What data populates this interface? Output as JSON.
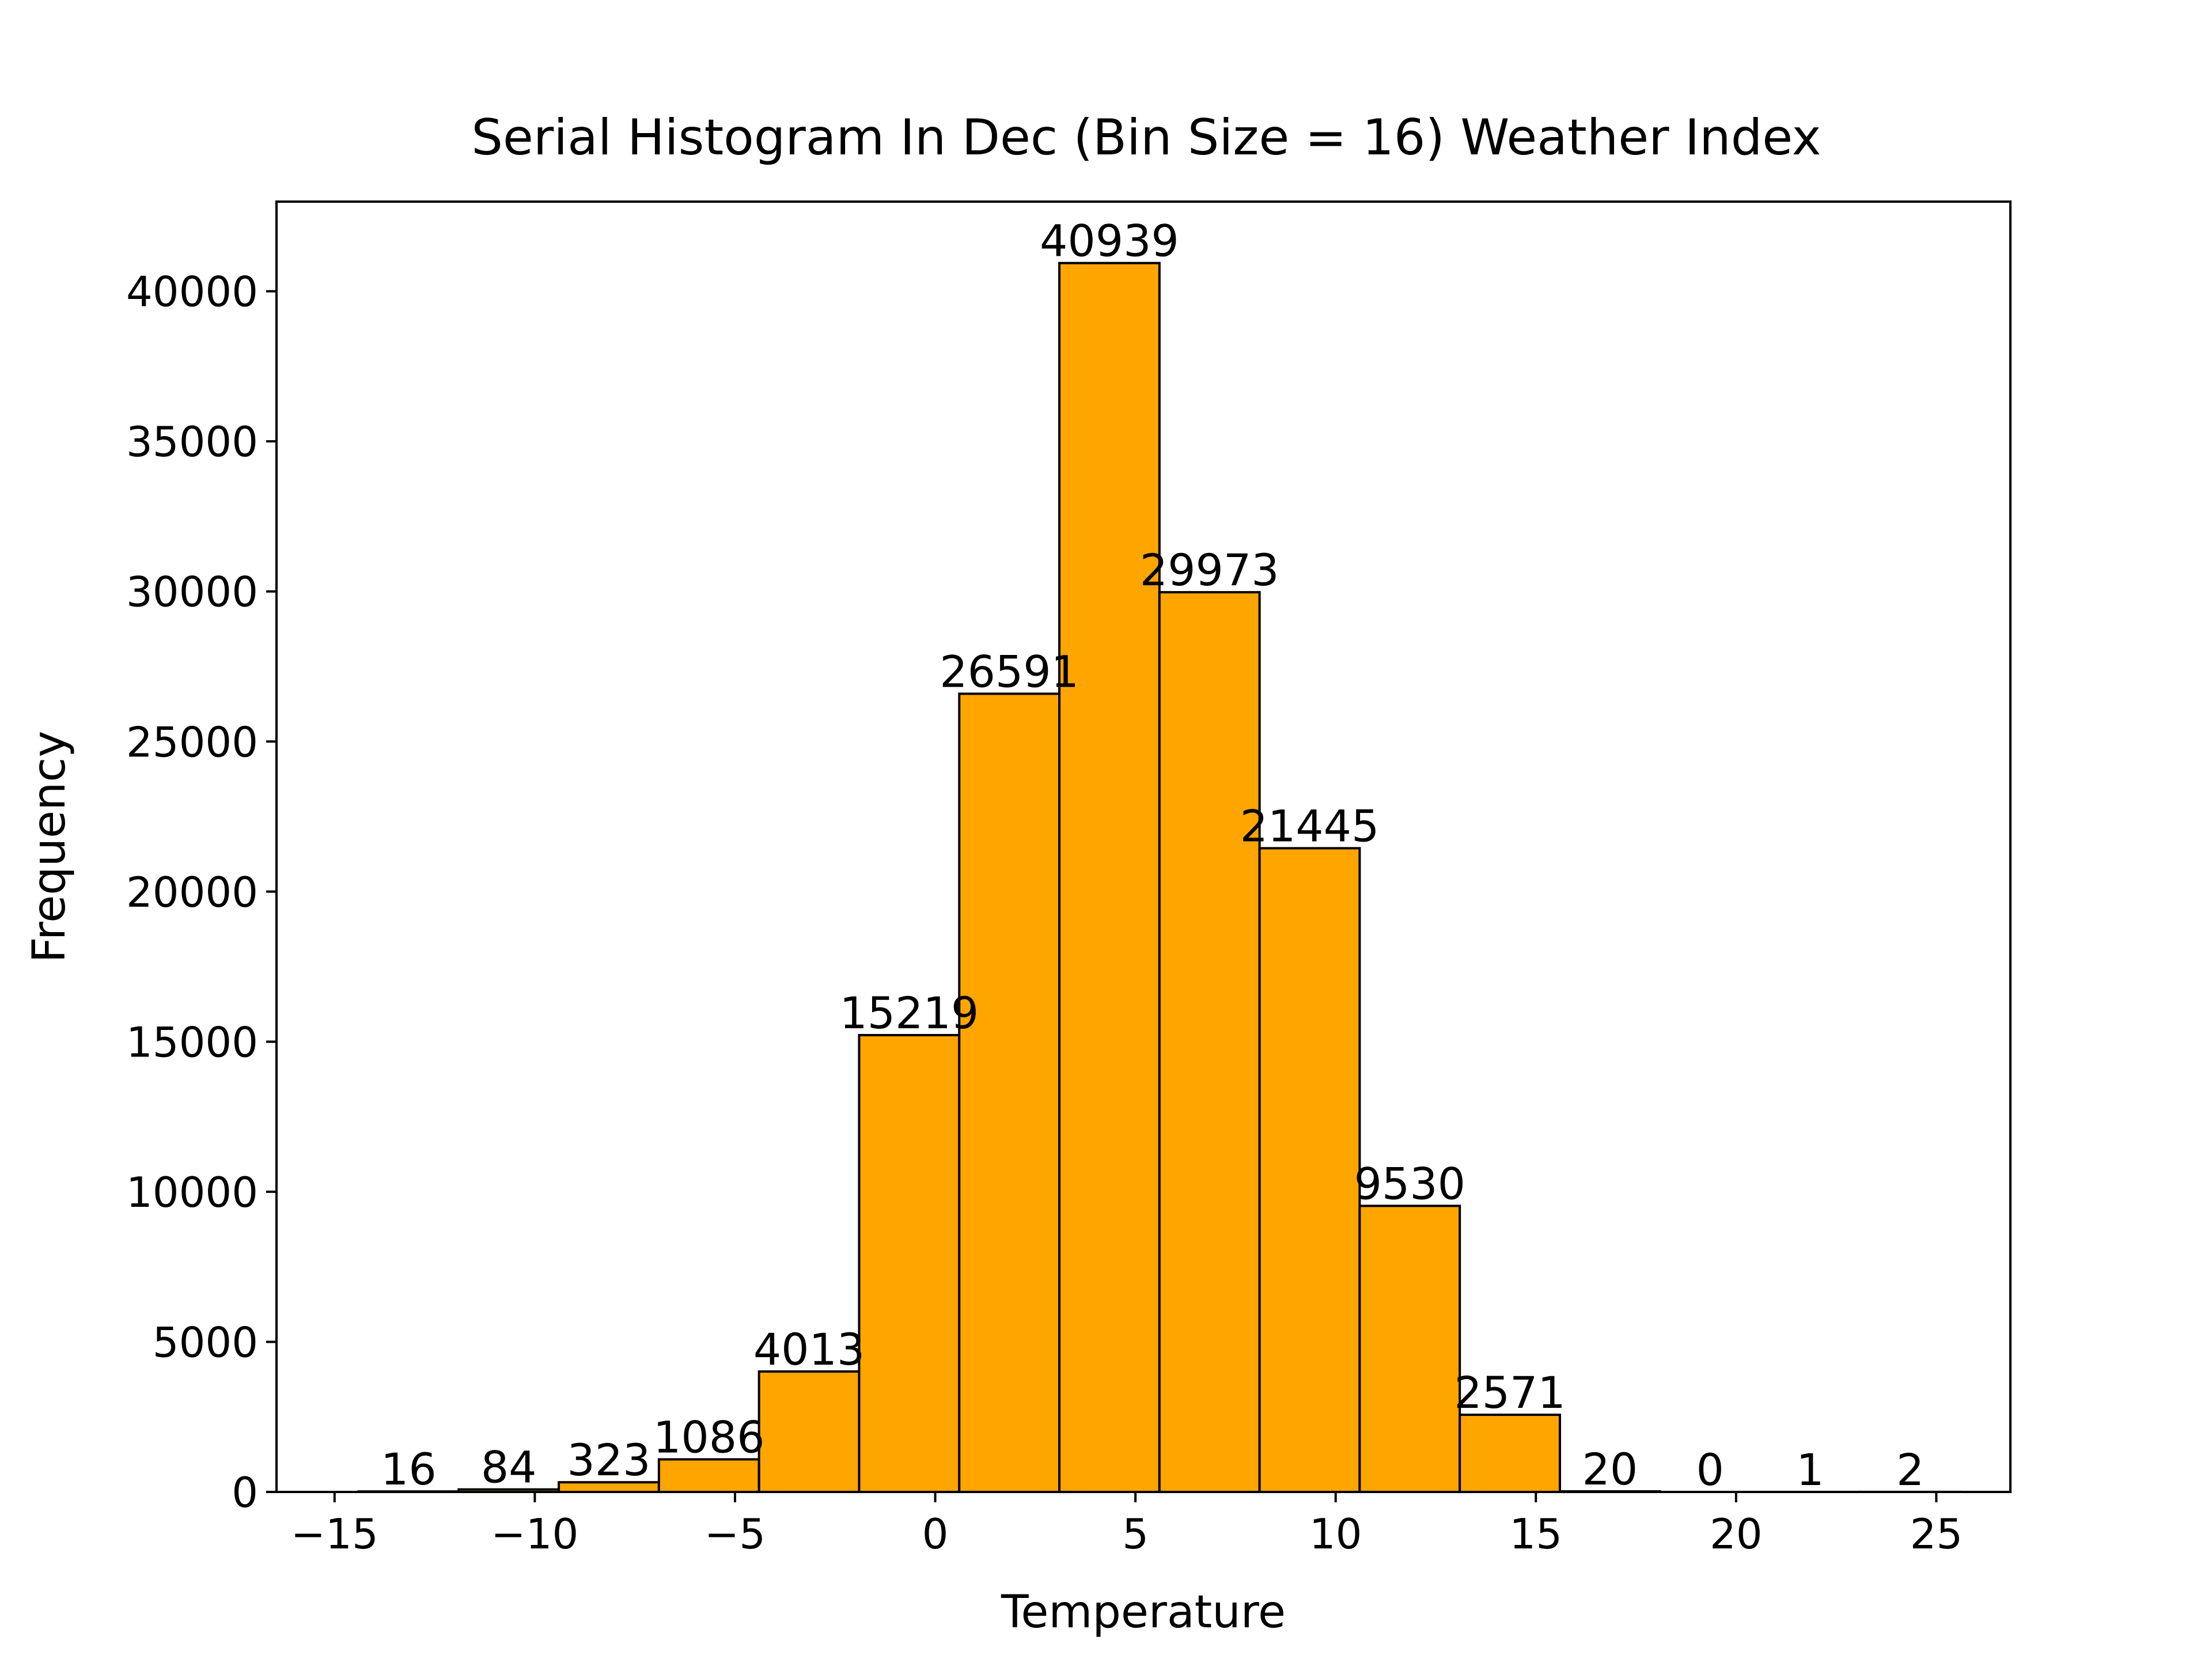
{
  "chart_data": {
    "type": "bar",
    "title": "Serial Histogram In Dec (Bin Size = 16) Weather Index",
    "xlabel": "Temperature",
    "ylabel": "Frequency",
    "bin_edges": [
      -14.4,
      -11.9,
      -9.4,
      -6.9,
      -4.4,
      -1.9,
      0.6,
      3.1,
      5.6,
      8.1,
      10.6,
      13.1,
      15.6,
      18.1,
      20.6,
      23.1,
      25.6
    ],
    "values": [
      16,
      84,
      323,
      1086,
      4013,
      15219,
      26591,
      40939,
      29973,
      21445,
      9530,
      2571,
      20,
      0,
      1,
      2
    ],
    "value_labels": [
      "16",
      "84",
      "323",
      "1086",
      "4013",
      "15219",
      "26591",
      "40939",
      "29973",
      "21445",
      "9530",
      "2571",
      "20",
      "0",
      "1",
      "2"
    ],
    "x_ticks": [
      -15,
      -10,
      -5,
      0,
      5,
      10,
      15,
      20,
      25
    ],
    "x_tick_labels": [
      "−15",
      "−10",
      "−5",
      "0",
      "5",
      "10",
      "15",
      "20",
      "25"
    ],
    "y_ticks": [
      0,
      5000,
      10000,
      15000,
      20000,
      25000,
      30000,
      35000,
      40000
    ],
    "y_tick_labels": [
      "0",
      "5000",
      "10000",
      "15000",
      "20000",
      "25000",
      "30000",
      "35000",
      "40000"
    ],
    "xlim": [
      -16.45,
      26.85
    ],
    "ylim": [
      0,
      42986
    ],
    "bar_color": "#ffa500",
    "edge_color": "#000000",
    "grid": false,
    "legend": false
  }
}
